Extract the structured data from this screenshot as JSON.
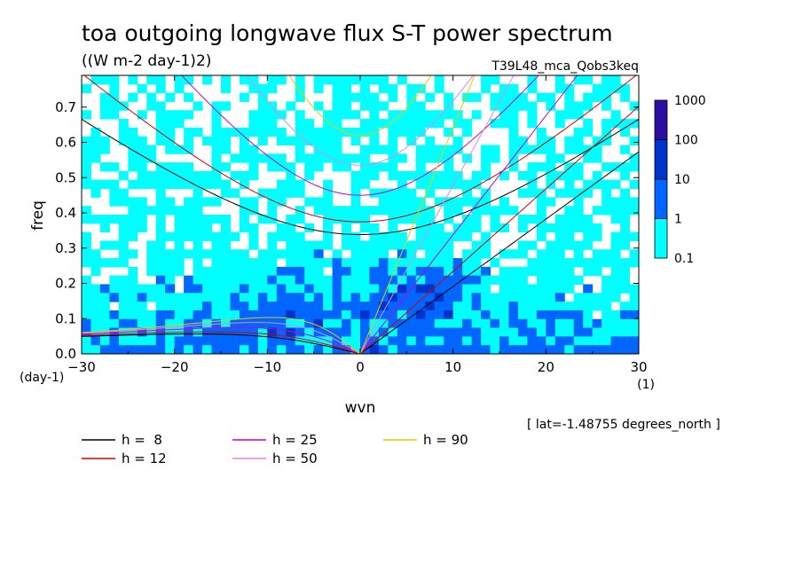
{
  "chart_data": {
    "type": "heatmap",
    "title": "toa outgoing longwave flux S-T power spectrum",
    "subtitle": "((W m-2 day-1)2)",
    "dataset_label": "T39L48_mca_Qobs3keq",
    "xlabel": "wvn",
    "ylabel": "freq",
    "y_units": "(day-1)",
    "x_units": "(1)",
    "xlim": [
      -30,
      30
    ],
    "ylim": [
      0,
      0.79
    ],
    "xticks": [
      -30,
      -20,
      -10,
      0,
      10,
      20,
      30
    ],
    "yticks": [
      0.0,
      0.1,
      0.2,
      0.3,
      0.4,
      0.5,
      0.6,
      0.7
    ],
    "ytick_labels": [
      "0.0",
      "0.1",
      "0.2",
      "0.3",
      "0.4",
      "0.5",
      "0.6",
      "0.7"
    ],
    "lat_note": "[ lat=-1.48755 degrees_north ]",
    "colorbar": {
      "levels": [
        "0.1",
        "1",
        "10",
        "100",
        "1000"
      ],
      "colors": [
        "#00ffff",
        "#0066ff",
        "#0033cc",
        "#2a0fa0"
      ]
    },
    "dispersion_curves": [
      {
        "label": "h =  8",
        "h": 8,
        "color": "#000000"
      },
      {
        "label": "h = 12",
        "h": 12,
        "color": "#dd0000"
      },
      {
        "label": "h = 25",
        "h": 25,
        "color": "#cc00cc"
      },
      {
        "label": "h = 50",
        "h": 50,
        "color": "#dd88dd"
      },
      {
        "label": "h = 90",
        "h": 90,
        "color": "#e8c800"
      }
    ]
  }
}
